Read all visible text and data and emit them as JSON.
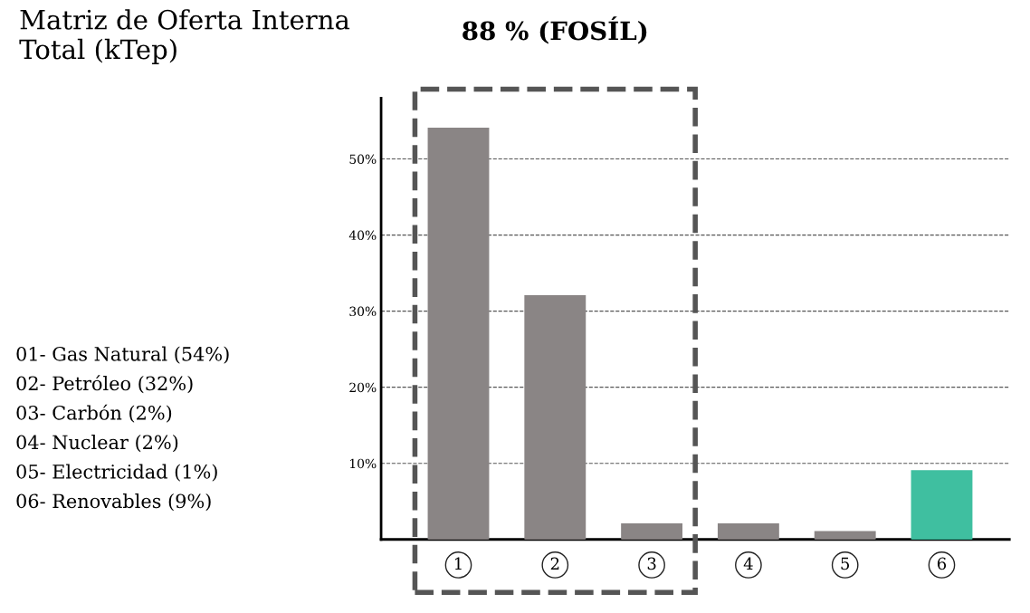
{
  "chart_data": {
    "type": "bar",
    "title": "Matriz de Oferta Interna Total (kTep)",
    "categories": [
      "1",
      "2",
      "3",
      "4",
      "5",
      "6"
    ],
    "values": [
      54,
      32,
      2,
      2,
      1,
      9
    ],
    "colors": [
      "#8a8585",
      "#8a8585",
      "#8a8585",
      "#8a8585",
      "#8a8585",
      "#3fbfa0"
    ],
    "ylim": [
      0,
      58
    ],
    "yticks": [
      {
        "value": 10,
        "label": "10%"
      },
      {
        "value": 20,
        "label": "20%"
      },
      {
        "value": 30,
        "label": "30%"
      },
      {
        "value": 40,
        "label": "40%"
      },
      {
        "value": 50,
        "label": "50%"
      }
    ],
    "grid": "y",
    "annotations": [
      "88 % (FOSÍL)",
      "01- Gas Natural (54%)",
      "02- Petróleo (32%)",
      "03- Carbón (2%)",
      "04- Nuclear (2%)",
      "05- Electricidad (1%)",
      "06- Renovables (9%)"
    ]
  }
}
